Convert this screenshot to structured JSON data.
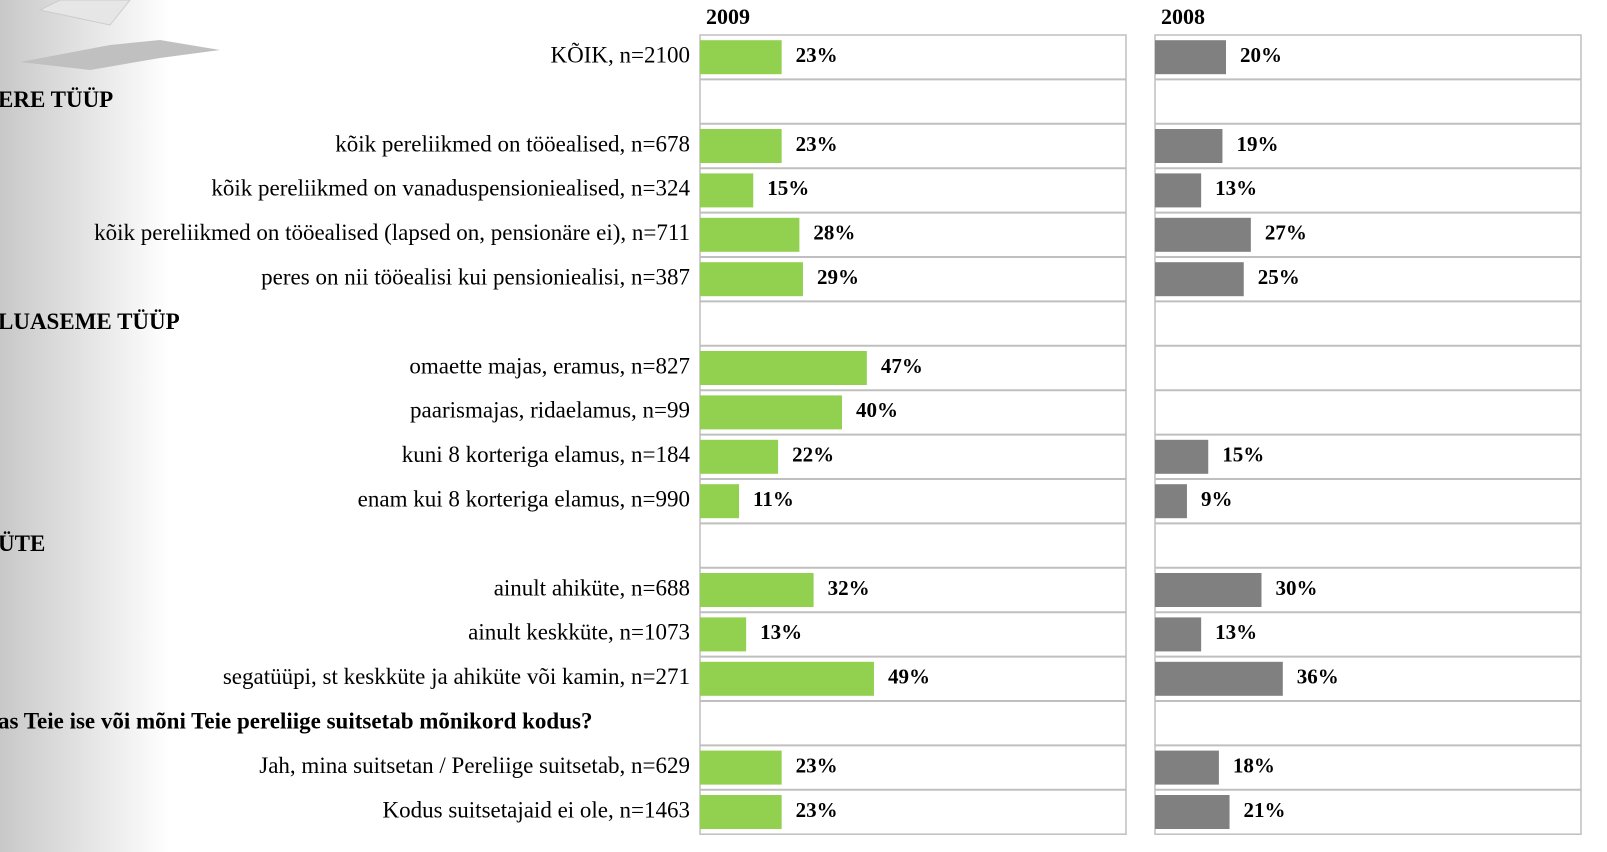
{
  "chart_data": {
    "type": "bar",
    "categories": [
      "KÕIK, n=2100",
      "ERE TÜÜP",
      "kõik pereliikmed on tööealised, n=678",
      "kõik pereliikmed on vanaduspensioniealised, n=324",
      "kõik pereliikmed on tööealised (lapsed on, pensionäre ei), n=711",
      "peres on nii tööealisi kui pensioniealisi, n=387",
      "LUASEME TÜÜP",
      "omaette majas, eramus,  n=827",
      "paarismajas, ridaelamus,  n=99",
      "kuni 8 korteriga elamus, n=184",
      "enam kui 8 korteriga elamus, n=990",
      "ÜTE",
      "ainult ahiküte, n=688",
      "ainult keskküte, n=1073",
      "segatüüpi, st keskküte ja ahiküte või kamin, n=271",
      "as Teie ise või mõni Teie pereliige suitsetab mõnikord kodus?",
      "Jah, mina suitsetan / Pereliige suitsetab, n=629",
      "Kodus suitsetajaid ei ole, n=1463"
    ],
    "series": [
      {
        "name": "2009",
        "color": "#92d050",
        "values": [
          23,
          null,
          23,
          15,
          28,
          29,
          null,
          47,
          40,
          22,
          11,
          null,
          32,
          13,
          49,
          null,
          23,
          23
        ],
        "value_labels": [
          "23%",
          null,
          "23%",
          "15%",
          "28%",
          "29%",
          null,
          "47%",
          "40%",
          "22%",
          "11%",
          null,
          "32%",
          "13%",
          "49%",
          null,
          "23%",
          "23%"
        ]
      },
      {
        "name": "2008",
        "color": "#808080",
        "values": [
          20,
          null,
          19,
          13,
          27,
          25,
          null,
          null,
          null,
          15,
          9,
          null,
          30,
          13,
          36,
          null,
          18,
          21
        ],
        "value_labels": [
          "20%",
          null,
          "19%",
          "13%",
          "27%",
          "25%",
          null,
          null,
          null,
          "15%",
          "9%",
          null,
          "30%",
          "13%",
          "36%",
          null,
          "18%",
          "21%"
        ]
      }
    ],
    "xlim": [
      0,
      120
    ]
  }
}
